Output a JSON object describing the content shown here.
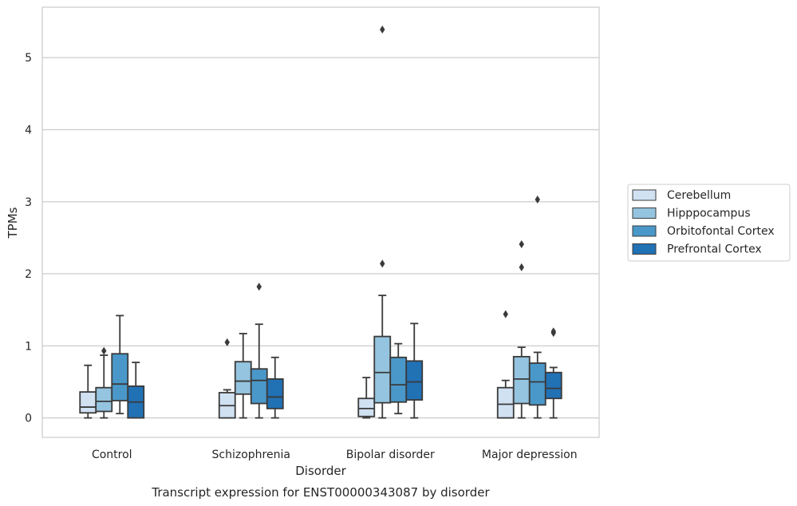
{
  "chart_data": {
    "type": "box",
    "title": "Transcript expression for ENST00000343087 by disorder",
    "xlabel": "Disorder",
    "ylabel": "TPMs",
    "categories": [
      "Control",
      "Schizophrenia",
      "Bipolar disorder",
      "Major depression"
    ],
    "yticks": [
      0,
      1,
      2,
      3,
      4,
      5
    ],
    "ylim": [
      -0.27,
      5.7
    ],
    "grid": "horizontal",
    "legend_position": "right",
    "series": [
      {
        "name": "Cerebellum",
        "color": "#d0e1f2",
        "boxes": [
          {
            "whisker_low": 0.0,
            "q1": 0.07,
            "median": 0.15,
            "q3": 0.36,
            "whisker_high": 0.73,
            "outliers": []
          },
          {
            "whisker_low": 0.0,
            "q1": 0.0,
            "median": 0.17,
            "q3": 0.35,
            "whisker_high": 0.39,
            "outliers": [
              1.05
            ]
          },
          {
            "whisker_low": 0.0,
            "q1": 0.02,
            "median": 0.13,
            "q3": 0.27,
            "whisker_high": 0.56,
            "outliers": []
          },
          {
            "whisker_low": 0.0,
            "q1": 0.0,
            "median": 0.19,
            "q3": 0.42,
            "whisker_high": 0.52,
            "outliers": [
              1.44
            ]
          }
        ]
      },
      {
        "name": "Hipppocampus",
        "color": "#94c4df",
        "boxes": [
          {
            "whisker_low": 0.0,
            "q1": 0.09,
            "median": 0.23,
            "q3": 0.42,
            "whisker_high": 0.87,
            "outliers": [
              0.93
            ]
          },
          {
            "whisker_low": 0.0,
            "q1": 0.33,
            "median": 0.51,
            "q3": 0.78,
            "whisker_high": 1.17,
            "outliers": []
          },
          {
            "whisker_low": 0.0,
            "q1": 0.21,
            "median": 0.63,
            "q3": 1.13,
            "whisker_high": 1.7,
            "outliers": [
              2.14,
              5.39
            ]
          },
          {
            "whisker_low": 0.0,
            "q1": 0.2,
            "median": 0.54,
            "q3": 0.85,
            "whisker_high": 0.98,
            "outliers": [
              2.09,
              2.41
            ]
          }
        ]
      },
      {
        "name": "Orbitofontal Cortex",
        "color": "#4a98c9",
        "boxes": [
          {
            "whisker_low": 0.06,
            "q1": 0.24,
            "median": 0.47,
            "q3": 0.89,
            "whisker_high": 1.42,
            "outliers": []
          },
          {
            "whisker_low": 0.0,
            "q1": 0.2,
            "median": 0.52,
            "q3": 0.68,
            "whisker_high": 1.3,
            "outliers": [
              1.82
            ]
          },
          {
            "whisker_low": 0.06,
            "q1": 0.22,
            "median": 0.46,
            "q3": 0.84,
            "whisker_high": 1.03,
            "outliers": []
          },
          {
            "whisker_low": 0.0,
            "q1": 0.18,
            "median": 0.5,
            "q3": 0.76,
            "whisker_high": 0.91,
            "outliers": [
              3.03
            ]
          }
        ]
      },
      {
        "name": "Prefrontal Cortex",
        "color": "#2171b5",
        "boxes": [
          {
            "whisker_low": 0.0,
            "q1": 0.0,
            "median": 0.22,
            "q3": 0.44,
            "whisker_high": 0.77,
            "outliers": []
          },
          {
            "whisker_low": 0.0,
            "q1": 0.13,
            "median": 0.29,
            "q3": 0.54,
            "whisker_high": 0.84,
            "outliers": []
          },
          {
            "whisker_low": 0.0,
            "q1": 0.25,
            "median": 0.5,
            "q3": 0.79,
            "whisker_high": 1.31,
            "outliers": []
          },
          {
            "whisker_low": 0.0,
            "q1": 0.27,
            "median": 0.41,
            "q3": 0.63,
            "whisker_high": 0.7,
            "outliers": [
              1.18,
              1.2
            ]
          }
        ]
      }
    ]
  }
}
